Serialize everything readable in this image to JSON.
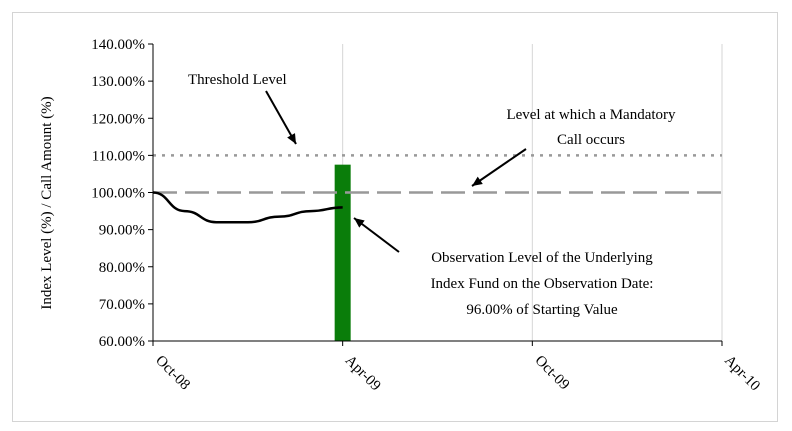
{
  "chart_data": {
    "type": "line",
    "title": "",
    "xlabel": "",
    "ylabel": "Index Level (%) / Call Amount (%)",
    "ylim": [
      60,
      140
    ],
    "y_ticks": [
      "60.00%",
      "70.00%",
      "80.00%",
      "90.00%",
      "100.00%",
      "110.00%",
      "120.00%",
      "130.00%",
      "140.00%"
    ],
    "x_ticks": [
      "Oct-08",
      "Apr-09",
      "Oct-09",
      "Apr-10"
    ],
    "grid": "vertical",
    "series": [
      {
        "name": "",
        "x": [
          "Oct-08",
          "Nov-08",
          "Dec-08",
          "Jan-09",
          "Feb-09",
          "Mar-09",
          "Apr-09"
        ],
        "values": [
          100,
          95,
          92,
          92,
          93.5,
          95,
          96
        ],
        "color": "#000000"
      }
    ],
    "reference_lines": [
      {
        "value": 110,
        "style": "dotted",
        "color": "#999999"
      },
      {
        "value": 100,
        "style": "dashed",
        "color": "#999999"
      }
    ],
    "bars": [
      {
        "x": "Apr-09",
        "value": 107.5,
        "color": "#0a7d0a"
      }
    ],
    "annotations": {
      "threshold": [
        "Threshold Level"
      ],
      "mandatory_call": [
        "Level at which a Mandatory",
        "Call occurs"
      ],
      "observation": [
        "Observation Level of the Underlying",
        "Index Fund on the Observation Date:",
        "96.00% of Starting Value"
      ]
    }
  }
}
